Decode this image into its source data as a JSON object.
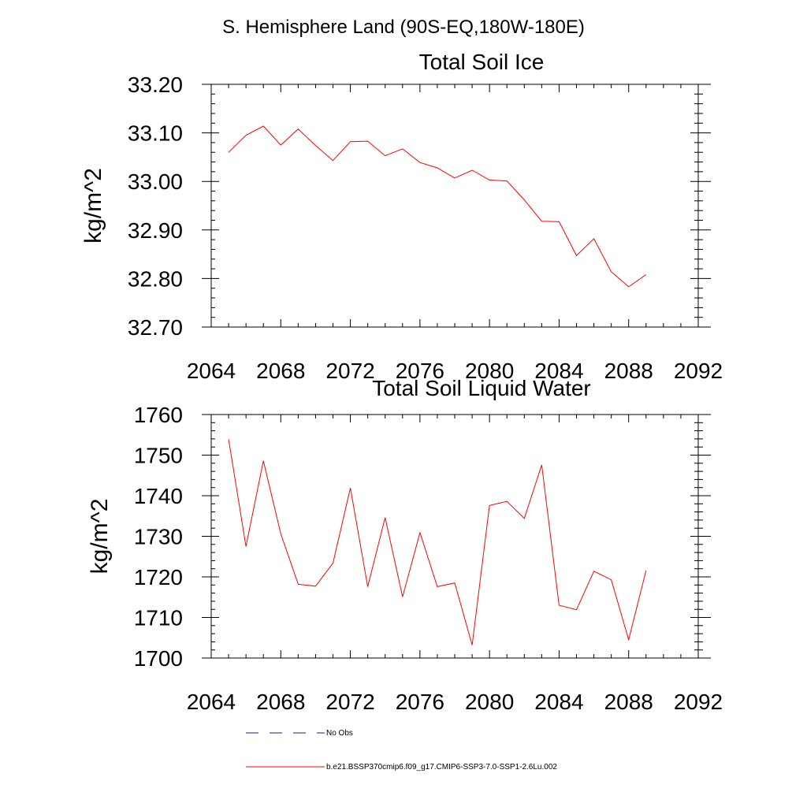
{
  "suptitle": "S. Hemisphere Land (90S-EQ,180W-180E)",
  "colors": {
    "model": "#ff0000",
    "obs": "#1a1a8c",
    "axis": "#000000"
  },
  "legend": {
    "placement": "bottom-left",
    "entries": [
      {
        "label": "No Obs",
        "style": "dashed",
        "color": "#1a1a8c"
      },
      {
        "label": "b.e21.BSSP370cmip6.f09_g17.CMIP6-SSP3-7.0-SSP1-2.6Lu.002",
        "style": "solid",
        "color": "#ff0000"
      }
    ]
  },
  "chart_data": [
    {
      "type": "line",
      "title": "Total Soil Ice",
      "xlabel": "",
      "ylabel": "kg/m^2",
      "xlim": [
        2064,
        2092
      ],
      "ylim": [
        32.7,
        33.2
      ],
      "xticks": [
        "2064",
        "2068",
        "2072",
        "2076",
        "2080",
        "2084",
        "2088",
        "2092"
      ],
      "yticks": [
        "32.70",
        "32.80",
        "32.90",
        "33.00",
        "33.10",
        "33.20"
      ],
      "grid": false,
      "x": [
        2065,
        2066,
        2067,
        2068,
        2069,
        2070,
        2071,
        2072,
        2073,
        2074,
        2075,
        2076,
        2077,
        2078,
        2079,
        2080,
        2081,
        2082,
        2083,
        2084,
        2085,
        2086,
        2087,
        2088,
        2089
      ],
      "series": [
        {
          "values": [
            33.06,
            33.095,
            33.114,
            33.075,
            33.108,
            33.074,
            33.043,
            33.082,
            33.083,
            33.053,
            33.067,
            33.039,
            33.028,
            33.007,
            33.023,
            33.003,
            33.001,
            32.962,
            32.918,
            32.917,
            32.847,
            32.882,
            32.814,
            32.783,
            32.808
          ]
        }
      ]
    },
    {
      "type": "line",
      "title": "Total Soil Liquid Water",
      "xlabel": "",
      "ylabel": "kg/m^2",
      "xlim": [
        2064,
        2092
      ],
      "ylim": [
        1700,
        1760
      ],
      "xticks": [
        "2064",
        "2068",
        "2072",
        "2076",
        "2080",
        "2084",
        "2088",
        "2092"
      ],
      "yticks": [
        "1700",
        "1710",
        "1720",
        "1730",
        "1740",
        "1750",
        "1760"
      ],
      "grid": false,
      "x": [
        2065,
        2066,
        2067,
        2068,
        2069,
        2070,
        2071,
        2072,
        2073,
        2074,
        2075,
        2076,
        2077,
        2078,
        2079,
        2080,
        2081,
        2082,
        2083,
        2084,
        2085,
        2086,
        2087,
        2088,
        2089
      ],
      "series": [
        {
          "values": [
            1753.9,
            1727.5,
            1748.6,
            1730.6,
            1718.2,
            1717.7,
            1723.4,
            1741.9,
            1717.6,
            1734.6,
            1715.1,
            1730.9,
            1717.6,
            1718.5,
            1703.2,
            1737.6,
            1738.6,
            1734.4,
            1747.6,
            1713.0,
            1711.9,
            1721.4,
            1719.3,
            1704.5,
            1721.6
          ]
        }
      ]
    }
  ]
}
